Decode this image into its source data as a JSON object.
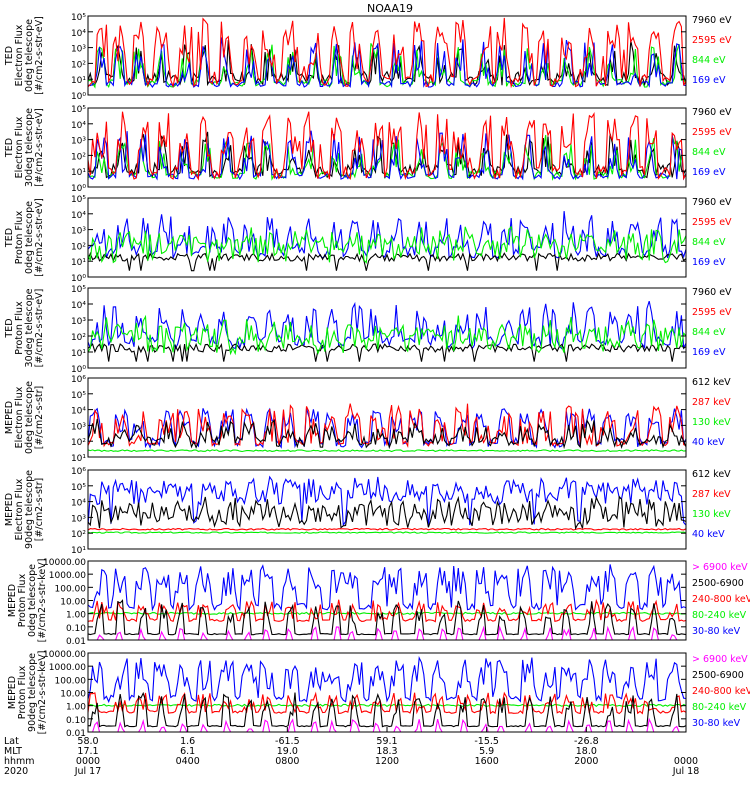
{
  "title": "NOAA19",
  "colors": {
    "black": "#000000",
    "red": "#ff0000",
    "green": "#00ee00",
    "blue": "#0000ff",
    "magenta": "#ff00ff"
  },
  "x_axis": {
    "row_labels": [
      "Lat",
      "MLT",
      "hhmm",
      "2020"
    ],
    "ticks": [
      {
        "lat": "58.0",
        "mlt": "17.1",
        "hhmm": "0000",
        "date": "Jul 17"
      },
      {
        "lat": "1.6",
        "mlt": "6.1",
        "hhmm": "0400",
        "date": ""
      },
      {
        "lat": "-61.5",
        "mlt": "19.0",
        "hhmm": "0800",
        "date": ""
      },
      {
        "lat": "59.1",
        "mlt": "18.3",
        "hhmm": "1200",
        "date": ""
      },
      {
        "lat": "-15.5",
        "mlt": "5.9",
        "hhmm": "1600",
        "date": ""
      },
      {
        "lat": "-26.8",
        "mlt": "18.0",
        "hhmm": "2000",
        "date": ""
      },
      {
        "lat": "",
        "mlt": "",
        "hhmm": "0000",
        "date": "Jul 18"
      }
    ]
  },
  "chart_data": [
    {
      "type": "line",
      "ylabel": [
        "TED",
        "Electron Flux",
        "0deg telescope",
        "[#/cm2-s-str-eV]"
      ],
      "ylim_log": [
        0,
        5
      ],
      "yticks": [
        "10⁰",
        "10¹",
        "10²",
        "10³",
        "10⁴",
        "10⁵"
      ],
      "legend": [
        {
          "label": "7960 eV",
          "color": "#000000"
        },
        {
          "label": "2595 eV",
          "color": "#ff0000"
        },
        {
          "label": "844 eV",
          "color": "#00ee00"
        },
        {
          "label": "169 eV",
          "color": "#0000ff"
        }
      ],
      "seed": 11,
      "kind": "ted_e"
    },
    {
      "type": "line",
      "ylabel": [
        "TED",
        "Electron Flux",
        "30deg telescope",
        "[#/cm2-s-str-eV]"
      ],
      "ylim_log": [
        0,
        5
      ],
      "yticks": [
        "10⁰",
        "10¹",
        "10²",
        "10³",
        "10⁴",
        "10⁵"
      ],
      "legend": [
        {
          "label": "7960 eV",
          "color": "#000000"
        },
        {
          "label": "2595 eV",
          "color": "#ff0000"
        },
        {
          "label": "844 eV",
          "color": "#00ee00"
        },
        {
          "label": "169 eV",
          "color": "#0000ff"
        }
      ],
      "seed": 23,
      "kind": "ted_e"
    },
    {
      "type": "line",
      "ylabel": [
        "TED",
        "Proton Flux",
        "0deg telescope",
        "[#/cm2-s-str-eV]"
      ],
      "ylim_log": [
        0,
        5
      ],
      "yticks": [
        "10⁰",
        "10¹",
        "10²",
        "10³",
        "10⁴",
        "10⁵"
      ],
      "legend": [
        {
          "label": "7960 eV",
          "color": "#000000"
        },
        {
          "label": "2595 eV",
          "color": "#ff0000"
        },
        {
          "label": "844 eV",
          "color": "#00ee00"
        },
        {
          "label": "169 eV",
          "color": "#0000ff"
        }
      ],
      "seed": 37,
      "kind": "ted_p"
    },
    {
      "type": "line",
      "ylabel": [
        "TED",
        "Proton Flux",
        "30deg telescope",
        "[#/cm2-s-str-eV]"
      ],
      "ylim_log": [
        0,
        5
      ],
      "yticks": [
        "10⁰",
        "10¹",
        "10²",
        "10³",
        "10⁴",
        "10⁵"
      ],
      "legend": [
        {
          "label": "7960 eV",
          "color": "#000000"
        },
        {
          "label": "2595 eV",
          "color": "#ff0000"
        },
        {
          "label": "844 eV",
          "color": "#00ee00"
        },
        {
          "label": "169 eV",
          "color": "#0000ff"
        }
      ],
      "seed": 41,
      "kind": "ted_p"
    },
    {
      "type": "line",
      "ylabel": [
        "MEPED",
        "Electron Flux",
        "0deg telescope",
        "[#/cm2-s-str]"
      ],
      "ylim_log": [
        1,
        6
      ],
      "yticks": [
        "10¹",
        "10²",
        "10³",
        "10⁴",
        "10⁵",
        "10⁶"
      ],
      "legend": [
        {
          "label": "612 keV",
          "color": "#000000"
        },
        {
          "label": "287 keV",
          "color": "#ff0000"
        },
        {
          "label": "130 keV",
          "color": "#00ee00"
        },
        {
          "label": "40 keV",
          "color": "#0000ff"
        }
      ],
      "seed": 53,
      "kind": "meped_e0"
    },
    {
      "type": "line",
      "ylabel": [
        "MEPED",
        "Electron Flux",
        "90deg telescope",
        "[#/cm2-s-str]"
      ],
      "ylim_log": [
        1,
        6
      ],
      "yticks": [
        "10¹",
        "10²",
        "10³",
        "10⁴",
        "10⁵",
        "10⁶"
      ],
      "legend": [
        {
          "label": "612 keV",
          "color": "#000000"
        },
        {
          "label": "287 keV",
          "color": "#ff0000"
        },
        {
          "label": "130 keV",
          "color": "#00ee00"
        },
        {
          "label": "40 keV",
          "color": "#0000ff"
        }
      ],
      "seed": 67,
      "kind": "meped_e90"
    },
    {
      "type": "line",
      "ylabel": [
        "MEPED",
        "Proton Flux",
        "0deg telescope",
        "[#/cm2-s-str-keV]"
      ],
      "ylim_log": [
        -2,
        4
      ],
      "yticks": [
        "0.01",
        "0.10",
        "1.00",
        "10.00",
        "100.00",
        "1000.00",
        "10000.00"
      ],
      "legend": [
        {
          "label": "> 6900 keV",
          "color": "#ff00ff"
        },
        {
          "label": "2500-6900",
          "color": "#000000"
        },
        {
          "label": "240-800 keV",
          "color": "#ff0000"
        },
        {
          "label": "80-240 keV",
          "color": "#00ee00"
        },
        {
          "label": "30-80 keV",
          "color": "#0000ff"
        }
      ],
      "seed": 79,
      "kind": "meped_p0"
    },
    {
      "type": "line",
      "ylabel": [
        "MEPED",
        "Proton Flux",
        "90deg telescope",
        "[#/cm2-s-str-keV]"
      ],
      "ylim_log": [
        -2,
        4
      ],
      "yticks": [
        "0.01",
        "0.10",
        "1.00",
        "10.00",
        "100.00",
        "1000.00",
        "10000.00"
      ],
      "legend": [
        {
          "label": "> 6900 keV",
          "color": "#ff00ff"
        },
        {
          "label": "2500-6900",
          "color": "#000000"
        },
        {
          "label": "240-800 keV",
          "color": "#ff0000"
        },
        {
          "label": "80-240 keV",
          "color": "#00ee00"
        },
        {
          "label": "30-80 keV",
          "color": "#0000ff"
        }
      ],
      "seed": 83,
      "kind": "meped_p90"
    }
  ]
}
